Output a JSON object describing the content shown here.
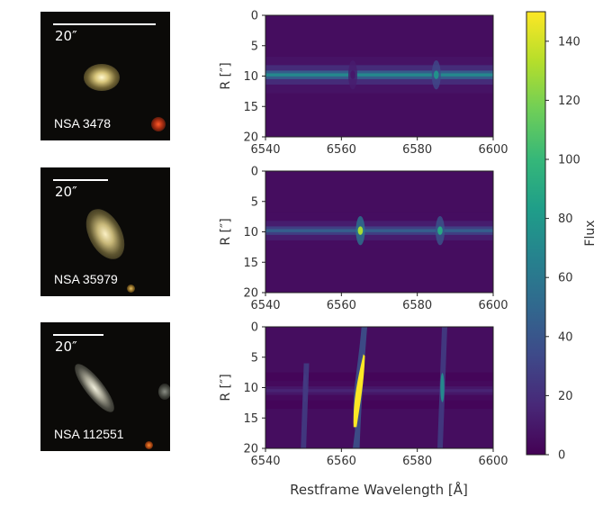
{
  "galaxies": [
    {
      "name": "NSA 3478",
      "scale_label": "20″"
    },
    {
      "name": "NSA 35979",
      "scale_label": "20″"
    },
    {
      "name": "NSA 112551",
      "scale_label": "20″"
    }
  ],
  "chart_data": [
    {
      "type": "heatmap",
      "title": "",
      "galaxy": "NSA 3478",
      "xlabel": "",
      "ylabel": "R [″]",
      "xlim": [
        6540,
        6600
      ],
      "ylim": [
        20,
        0
      ],
      "xticks": [
        6540,
        6560,
        6580,
        6600
      ],
      "yticks": [
        0,
        5,
        10,
        15,
        20
      ],
      "continuum_center_R": 9.8,
      "continuum_peak_flux": 70,
      "lines": [
        {
          "wavelength": 6563,
          "peak_flux": 10
        },
        {
          "wavelength": 6585,
          "peak_flux": 75
        }
      ]
    },
    {
      "type": "heatmap",
      "title": "",
      "galaxy": "NSA 35979",
      "xlabel": "",
      "ylabel": "R [″]",
      "xlim": [
        6540,
        6600
      ],
      "ylim": [
        20,
        0
      ],
      "xticks": [
        6540,
        6560,
        6580,
        6600
      ],
      "yticks": [
        0,
        5,
        10,
        15,
        20
      ],
      "continuum_center_R": 9.8,
      "continuum_peak_flux": 45,
      "lines": [
        {
          "wavelength": 6565,
          "peak_flux": 130
        },
        {
          "wavelength": 6586,
          "peak_flux": 90
        }
      ]
    },
    {
      "type": "heatmap",
      "title": "",
      "galaxy": "NSA 112551",
      "xlabel": "Restframe Wavelength [Å]",
      "ylabel": "R [″]",
      "xlim": [
        6540,
        6600
      ],
      "ylim": [
        20,
        0
      ],
      "xticks": [
        6540,
        6560,
        6580,
        6600
      ],
      "yticks": [
        0,
        5,
        10,
        15,
        20
      ],
      "continuum_center_R": 10.5,
      "continuum_peak_flux": 15,
      "lines": [
        {
          "wavelength": 6550,
          "peak_flux": 25,
          "R_range": [
            6,
            20
          ]
        },
        {
          "wavelength": 6564,
          "peak_flux": 150,
          "R_range": [
            0,
            20
          ]
        },
        {
          "wavelength": 6586,
          "peak_flux": 70,
          "R_range": [
            0,
            20
          ]
        }
      ]
    }
  ],
  "colorbar": {
    "label": "Flux",
    "colormap": "viridis",
    "range": [
      0,
      150
    ],
    "ticks": [
      0,
      20,
      40,
      60,
      80,
      100,
      120,
      140
    ]
  }
}
